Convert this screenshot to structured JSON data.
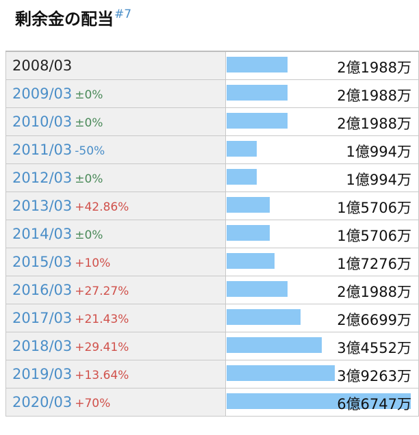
{
  "header": {
    "title": "剰余金の配当",
    "note": "#7"
  },
  "chart_data": {
    "type": "bar",
    "unit": "万円",
    "max": 67470,
    "rows": [
      {
        "date": "2008/03",
        "change": "",
        "change_type": "",
        "amount": "2億1988万",
        "value": 21988,
        "link": false
      },
      {
        "date": "2009/03",
        "change": "±0%",
        "change_type": "flat",
        "amount": "2億1988万",
        "value": 21988,
        "link": true
      },
      {
        "date": "2010/03",
        "change": "±0%",
        "change_type": "flat",
        "amount": "2億1988万",
        "value": 21988,
        "link": true
      },
      {
        "date": "2011/03",
        "change": "-50%",
        "change_type": "down",
        "amount": "1億994万",
        "value": 10994,
        "link": true
      },
      {
        "date": "2012/03",
        "change": "±0%",
        "change_type": "flat",
        "amount": "1億994万",
        "value": 10994,
        "link": true
      },
      {
        "date": "2013/03",
        "change": "+42.86%",
        "change_type": "up",
        "amount": "1億5706万",
        "value": 15706,
        "link": true
      },
      {
        "date": "2014/03",
        "change": "±0%",
        "change_type": "flat",
        "amount": "1億5706万",
        "value": 15706,
        "link": true
      },
      {
        "date": "2015/03",
        "change": "+10%",
        "change_type": "up",
        "amount": "1億7276万",
        "value": 17276,
        "link": true
      },
      {
        "date": "2016/03",
        "change": "+27.27%",
        "change_type": "up",
        "amount": "2億1988万",
        "value": 21988,
        "link": true
      },
      {
        "date": "2017/03",
        "change": "+21.43%",
        "change_type": "up",
        "amount": "2億6699万",
        "value": 26699,
        "link": true
      },
      {
        "date": "2018/03",
        "change": "+29.41%",
        "change_type": "up",
        "amount": "3億4552万",
        "value": 34552,
        "link": true
      },
      {
        "date": "2019/03",
        "change": "+13.64%",
        "change_type": "up",
        "amount": "3億9263万",
        "value": 39263,
        "link": true
      },
      {
        "date": "2020/03",
        "change": "+70%",
        "change_type": "up",
        "amount": "6億6747万",
        "value": 66747,
        "link": true
      }
    ]
  },
  "colors": {
    "bar": "#8cc8f5",
    "link": "#4a8ec8",
    "flat": "#4b8a5a",
    "up": "#d0504a",
    "down": "#4a8ec8"
  }
}
